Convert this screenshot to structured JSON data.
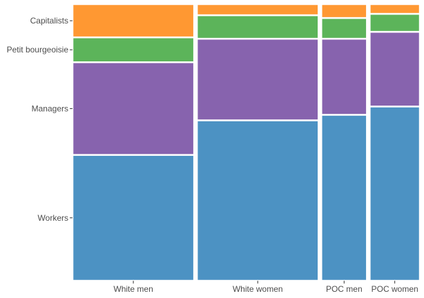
{
  "chart_data": {
    "type": "mosaic",
    "title": "",
    "xlabel": "",
    "ylabel": "",
    "categories": [
      "White men",
      "White women",
      "POC men",
      "POC women"
    ],
    "widths": [
      0.4,
      0.4,
      0.15,
      0.165
    ],
    "classes": [
      "Workers",
      "Managers",
      "Petit bourgeoisie",
      "Capitalists"
    ],
    "y_tick_labels": [
      "Capitalists",
      "Petit bourgeoisie",
      "Managers",
      "Workers"
    ],
    "series": [
      {
        "name": "Workers",
        "values": [
          0.455,
          0.58,
          0.6,
          0.63
        ]
      },
      {
        "name": "Managers",
        "values": [
          0.335,
          0.295,
          0.275,
          0.27
        ]
      },
      {
        "name": "Petit bourgeoisie",
        "values": [
          0.09,
          0.085,
          0.075,
          0.065
        ]
      },
      {
        "name": "Capitalists",
        "values": [
          0.12,
          0.04,
          0.05,
          0.035
        ]
      }
    ],
    "colors": {
      "Workers": "#4c92c3",
      "Managers": "#8763ae",
      "Petit bourgeoisie": "#5cb45a",
      "Capitalists": "#ff9832"
    },
    "grid": false,
    "legend": "none"
  }
}
